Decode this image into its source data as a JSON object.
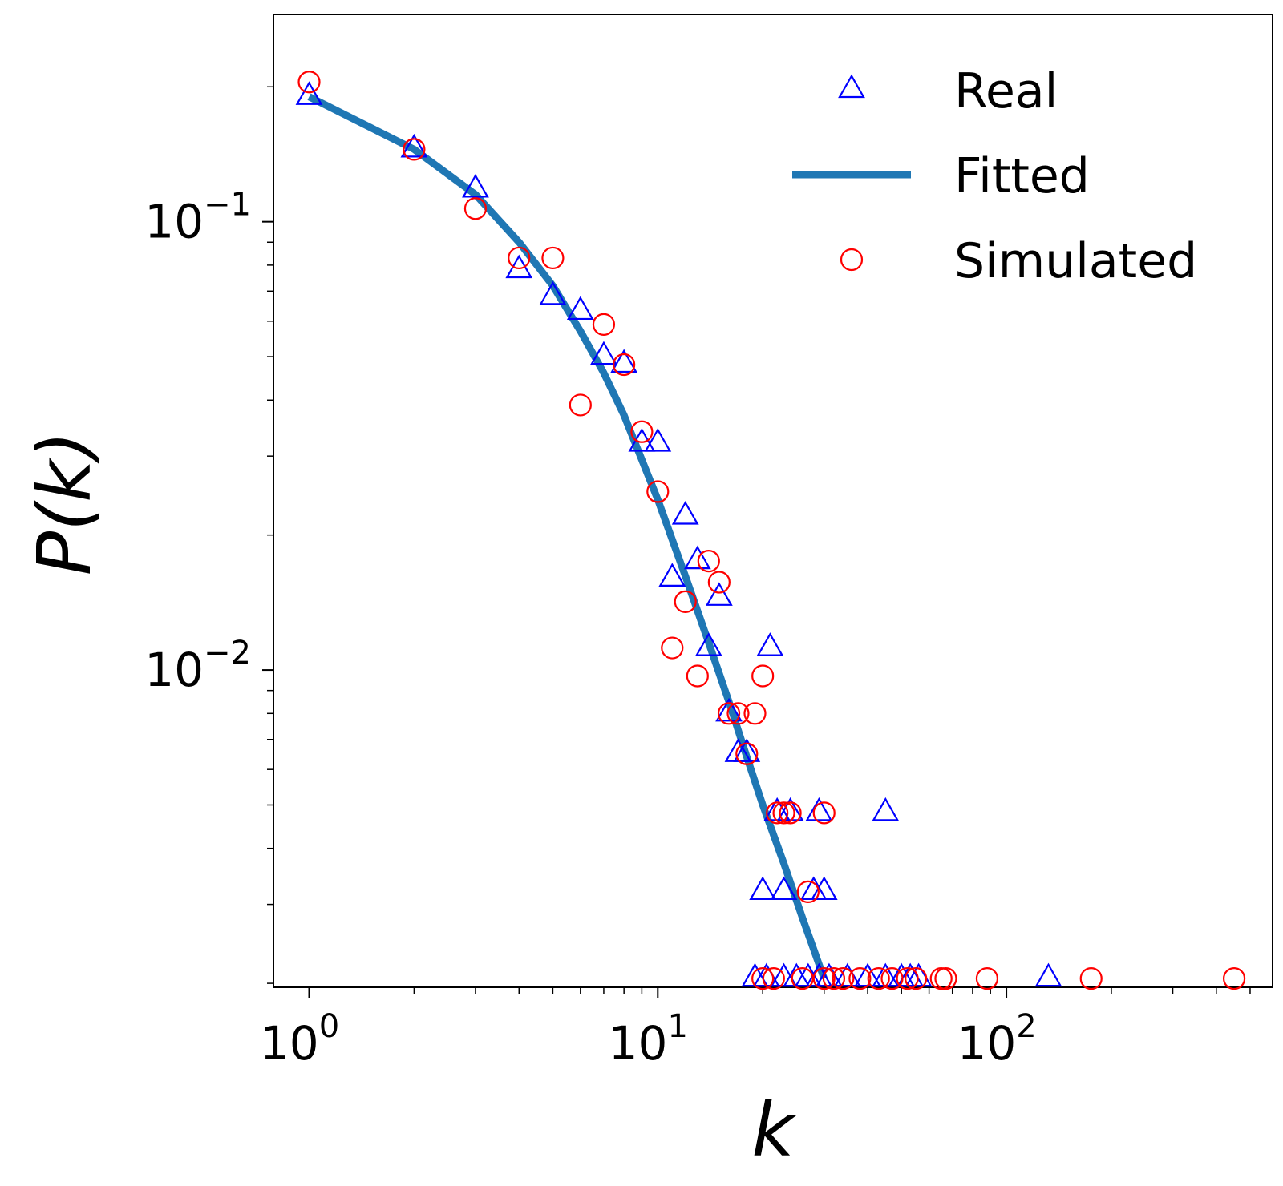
{
  "chart_data": {
    "type": "scatter",
    "title": "",
    "xlabel": "k",
    "ylabel": "P(k)",
    "xscale": "log",
    "yscale": "log",
    "xlim": [
      0.79,
      580
    ],
    "ylim": [
      0.00196,
      0.29
    ],
    "grid": false,
    "legend_position": "top-right",
    "x_ticks": [
      {
        "value": 1,
        "base": "10",
        "exp": "0"
      },
      {
        "value": 10,
        "base": "10",
        "exp": "1"
      },
      {
        "value": 100,
        "base": "10",
        "exp": "2"
      }
    ],
    "y_ticks": [
      {
        "value": 0.1,
        "base": "10",
        "exp": "−1"
      },
      {
        "value": 0.01,
        "base": "10",
        "exp": "−2"
      }
    ],
    "series": [
      {
        "name": "Real",
        "kind": "scatter",
        "marker": "triangle",
        "color": "#0000ff",
        "points": [
          [
            1,
            0.19
          ],
          [
            2,
            0.145
          ],
          [
            3,
            0.118
          ],
          [
            4,
            0.078
          ],
          [
            5,
            0.068
          ],
          [
            6,
            0.063
          ],
          [
            7,
            0.05
          ],
          [
            8,
            0.048
          ],
          [
            9,
            0.032
          ],
          [
            10,
            0.032
          ],
          [
            11,
            0.016
          ],
          [
            12,
            0.022
          ],
          [
            13,
            0.0175
          ],
          [
            14,
            0.0112
          ],
          [
            15,
            0.0145
          ],
          [
            16,
            0.008
          ],
          [
            17,
            0.0065
          ],
          [
            18,
            0.0065
          ],
          [
            20,
            0.0032
          ],
          [
            21,
            0.0112
          ],
          [
            22,
            0.0048
          ],
          [
            23,
            0.0032
          ],
          [
            24,
            0.0048
          ],
          [
            28,
            0.0032
          ],
          [
            29,
            0.0048
          ],
          [
            30,
            0.0032
          ],
          [
            45,
            0.0048
          ],
          [
            19,
            0.00205
          ],
          [
            20.5,
            0.00205
          ],
          [
            23,
            0.00205
          ],
          [
            25,
            0.00205
          ],
          [
            27,
            0.00205
          ],
          [
            29,
            0.00205
          ],
          [
            31,
            0.00205
          ],
          [
            35,
            0.00205
          ],
          [
            40,
            0.00205
          ],
          [
            45,
            0.00205
          ],
          [
            50,
            0.00205
          ],
          [
            53,
            0.00205
          ],
          [
            56,
            0.00205
          ],
          [
            132,
            0.00205
          ]
        ]
      },
      {
        "name": "Fitted",
        "kind": "line",
        "color": "#1f77b4",
        "points": [
          [
            1,
            0.19
          ],
          [
            2,
            0.145
          ],
          [
            3,
            0.115
          ],
          [
            4,
            0.09
          ],
          [
            5,
            0.072
          ],
          [
            6,
            0.057
          ],
          [
            7,
            0.046
          ],
          [
            8,
            0.037
          ],
          [
            10,
            0.024
          ],
          [
            12,
            0.0162
          ],
          [
            14,
            0.0115
          ],
          [
            16,
            0.0085
          ],
          [
            18,
            0.0064
          ],
          [
            20,
            0.005
          ],
          [
            23,
            0.0037
          ],
          [
            26,
            0.0028
          ],
          [
            30,
            0.00205
          ]
        ]
      },
      {
        "name": "Simulated",
        "kind": "scatter",
        "marker": "circle",
        "color": "#ff0000",
        "points": [
          [
            1,
            0.205
          ],
          [
            2,
            0.145
          ],
          [
            3,
            0.107
          ],
          [
            4,
            0.083
          ],
          [
            5,
            0.083
          ],
          [
            6,
            0.039
          ],
          [
            7,
            0.059
          ],
          [
            8,
            0.048
          ],
          [
            9,
            0.034
          ],
          [
            10,
            0.025
          ],
          [
            11,
            0.0112
          ],
          [
            12,
            0.0142
          ],
          [
            13,
            0.0097
          ],
          [
            14,
            0.0175
          ],
          [
            15,
            0.0157
          ],
          [
            16,
            0.008
          ],
          [
            17,
            0.008
          ],
          [
            18,
            0.0065
          ],
          [
            19,
            0.008
          ],
          [
            20,
            0.0097
          ],
          [
            22,
            0.0048
          ],
          [
            23,
            0.0048
          ],
          [
            24,
            0.0048
          ],
          [
            27,
            0.0032
          ],
          [
            30,
            0.0048
          ],
          [
            20,
            0.00205
          ],
          [
            21.5,
            0.00205
          ],
          [
            26,
            0.00205
          ],
          [
            30,
            0.00205
          ],
          [
            32,
            0.00205
          ],
          [
            34,
            0.00205
          ],
          [
            38,
            0.00205
          ],
          [
            43,
            0.00205
          ],
          [
            47,
            0.00205
          ],
          [
            52,
            0.00205
          ],
          [
            55,
            0.00205
          ],
          [
            65,
            0.00205
          ],
          [
            67,
            0.00205
          ],
          [
            88,
            0.00205
          ],
          [
            175,
            0.00205
          ],
          [
            450,
            0.00205
          ]
        ]
      }
    ]
  }
}
